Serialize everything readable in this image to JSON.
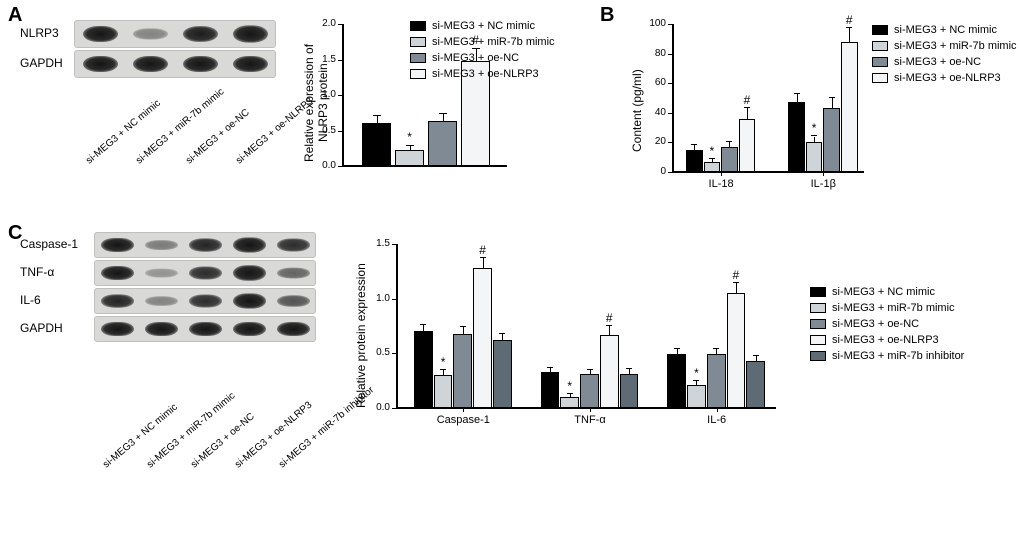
{
  "colors": {
    "cond1": "#000000",
    "cond2": "#cfd4d9",
    "cond3": "#7f8a94",
    "cond4": "#f4f5f6",
    "cond5": "#5e6a74",
    "axis": "#000000",
    "bg": "#ffffff"
  },
  "conditions4": [
    "si-MEG3 + NC mimic",
    "si-MEG3 + miR-7b mimic",
    "si-MEG3 + oe-NC",
    "si-MEG3 + oe-NLRP3"
  ],
  "conditions5": [
    "si-MEG3 + NC mimic",
    "si-MEG3 + miR-7b mimic",
    "si-MEG3 + oe-NC",
    "si-MEG3 + oe-NLRP3",
    "si-MEG3 + miR-7b inhibitor"
  ],
  "panelA": {
    "label": "A",
    "blot_rows": [
      "NLRP3",
      "GAPDH"
    ],
    "blot_bands": {
      "NLRP3": [
        1.0,
        0.25,
        0.95,
        1.2
      ],
      "GAPDH": [
        1.0,
        1.0,
        1.0,
        1.0
      ]
    },
    "chart": {
      "type": "bar",
      "y_title": "Relative expression of\nNLRP3 protein",
      "ylim": [
        0,
        2.0
      ],
      "ytick_step": 0.5,
      "categories": [
        ""
      ],
      "series_values": [
        0.6,
        0.22,
        0.64,
        1.48
      ],
      "series_err": [
        0.11,
        0.06,
        0.09,
        0.17
      ],
      "series_sig": [
        "",
        "*",
        "",
        "#"
      ]
    }
  },
  "panelB": {
    "label": "B",
    "chart": {
      "type": "grouped-bar",
      "y_title": "Content (pg/ml)",
      "ylim": [
        0,
        100
      ],
      "ytick_step": 20,
      "categories": [
        "IL-18",
        "IL-1β"
      ],
      "values": {
        "IL-18": [
          15,
          7,
          17,
          36
        ],
        "IL-1β": [
          47,
          20,
          43,
          88
        ]
      },
      "err": {
        "IL-18": [
          3,
          2,
          3,
          7
        ],
        "IL-1β": [
          6,
          4,
          7,
          9
        ]
      },
      "sig": {
        "IL-18": [
          "",
          "*",
          "",
          "#"
        ],
        "IL-1β": [
          "",
          "*",
          "",
          "#"
        ]
      }
    }
  },
  "panelC": {
    "label": "C",
    "blot_rows": [
      "Caspase-1",
      "TNF-α",
      "IL-6",
      "GAPDH"
    ],
    "blot_bands": {
      "Caspase-1": [
        1.0,
        0.35,
        0.9,
        1.2,
        0.85
      ],
      "TNF-α": [
        1.0,
        0.2,
        0.85,
        1.25,
        0.5
      ],
      "IL-6": [
        0.9,
        0.3,
        0.85,
        1.2,
        0.6
      ],
      "GAPDH": [
        1.0,
        1.0,
        1.0,
        1.0,
        1.0
      ]
    },
    "chart": {
      "type": "grouped-bar",
      "y_title": "Relative protein expression",
      "ylim": [
        0,
        1.5
      ],
      "ytick_step": 0.5,
      "categories": [
        "Caspase-1",
        "TNF-α",
        "IL-6"
      ],
      "values": {
        "Caspase-1": [
          0.7,
          0.3,
          0.68,
          1.28,
          0.62
        ],
        "TNF-α": [
          0.33,
          0.1,
          0.31,
          0.67,
          0.31
        ],
        "IL-6": [
          0.49,
          0.21,
          0.49,
          1.05,
          0.43
        ]
      },
      "err": {
        "Caspase-1": [
          0.06,
          0.05,
          0.06,
          0.09,
          0.06
        ],
        "TNF-α": [
          0.04,
          0.03,
          0.04,
          0.08,
          0.05
        ],
        "IL-6": [
          0.05,
          0.04,
          0.05,
          0.09,
          0.05
        ]
      },
      "sig": {
        "Caspase-1": [
          "",
          "*",
          "",
          "#",
          ""
        ],
        "TNF-α": [
          "",
          "*",
          "",
          "#",
          ""
        ],
        "IL-6": [
          "",
          "*",
          "",
          "#",
          ""
        ]
      }
    }
  },
  "typography": {
    "panel_label_fontsize": 20,
    "axis_label_fontsize": 12,
    "tick_fontsize": 10,
    "lane_label_fontsize": 10,
    "legend_fontsize": 11
  }
}
